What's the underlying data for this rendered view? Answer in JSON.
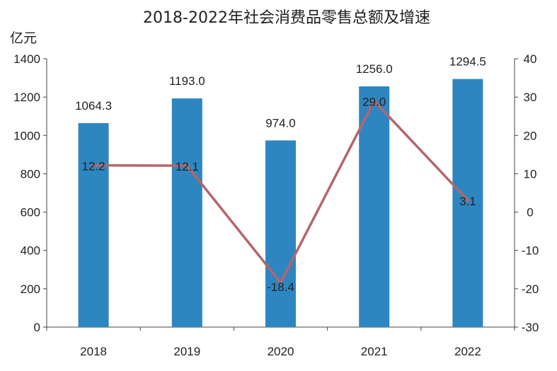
{
  "chart_data": {
    "type": "bar",
    "title": "2018-2022年社会消费品零售总额及增速",
    "ylabel": "亿元",
    "categories": [
      "2018",
      "2019",
      "2020",
      "2021",
      "2022"
    ],
    "series": [
      {
        "type": "bar",
        "axis": "left",
        "values": [
          1064.3,
          1193.0,
          974.0,
          1256.0,
          1294.5
        ],
        "labels": [
          "1064.3",
          "1193.0",
          "974.0",
          "1256.0",
          "1294.5"
        ],
        "color": "#2e86c1"
      },
      {
        "type": "line",
        "axis": "right",
        "values": [
          12.2,
          12.1,
          -18.4,
          29.0,
          3.1
        ],
        "labels": [
          "12.2",
          "12.1",
          "-18.4",
          "29.0",
          "3.1"
        ],
        "color": "#b5656b"
      }
    ],
    "ylim": [
      0,
      1400
    ],
    "y2lim": [
      -30,
      40
    ],
    "yticks": [
      "0",
      "200",
      "400",
      "600",
      "800",
      "1000",
      "1200",
      "1400"
    ],
    "y2ticks": [
      "-30",
      "-20",
      "-10",
      "0",
      "10",
      "20",
      "30",
      "40"
    ],
    "grid": false,
    "legend": "none"
  }
}
